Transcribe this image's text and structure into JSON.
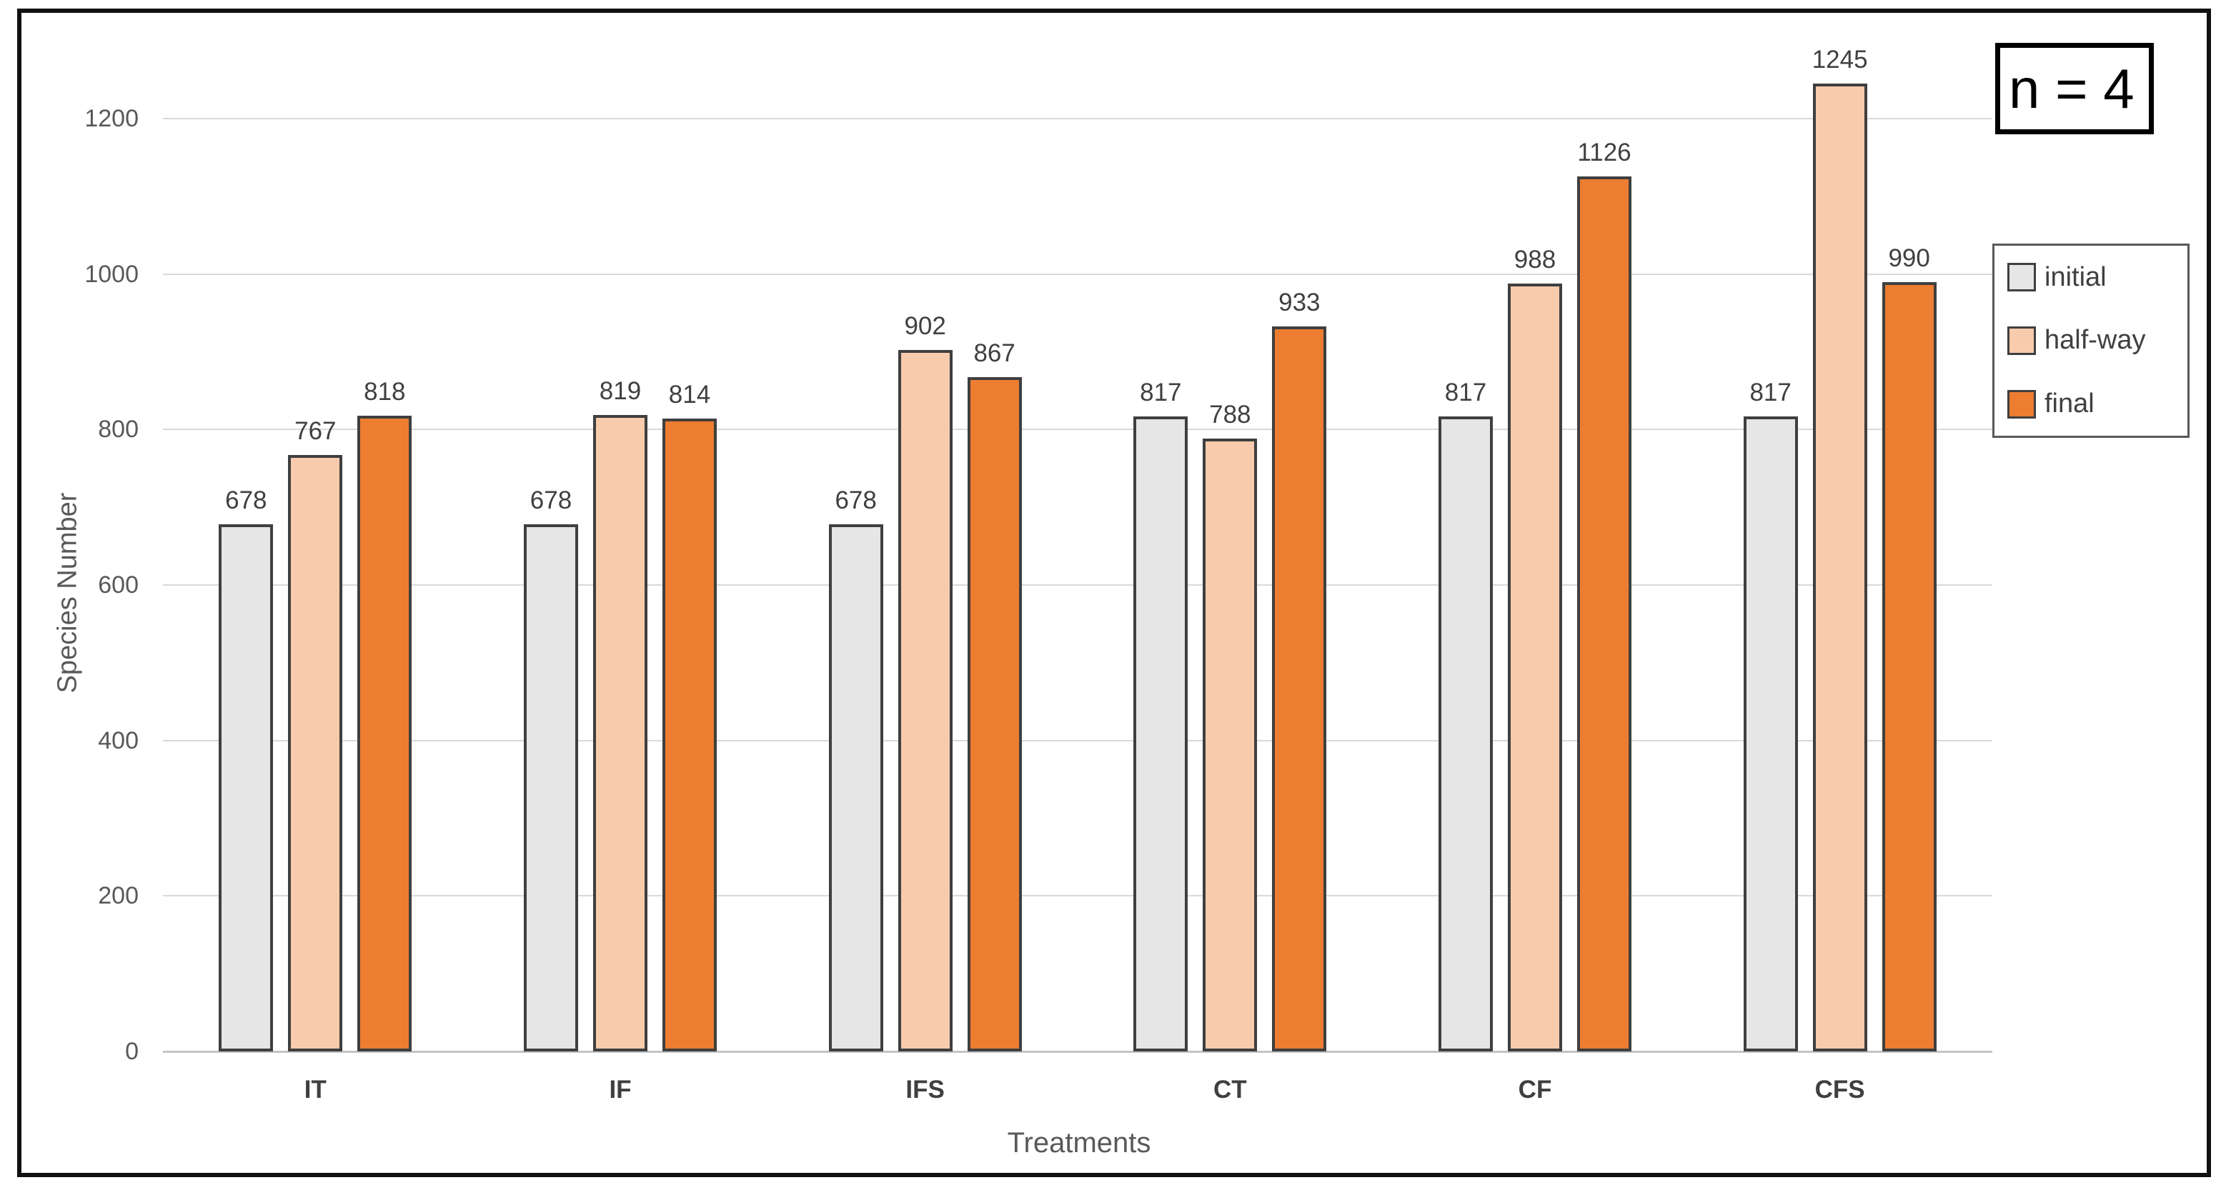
{
  "chart_data": {
    "type": "bar",
    "title": "",
    "xlabel": "Treatments",
    "ylabel": "Species Number",
    "annotation": "n = 4",
    "categories": [
      "IT",
      "IF",
      "IFS",
      "CT",
      "CF",
      "CFS"
    ],
    "series": [
      {
        "name": "initial",
        "values": [
          678,
          678,
          678,
          817,
          817,
          817
        ],
        "fill": "#e7e6e6",
        "border": "#3f3f3f"
      },
      {
        "name": "half-way",
        "values": [
          767,
          819,
          902,
          788,
          988,
          1245
        ],
        "fill": "#f8cbad",
        "border": "#3f3f3f"
      },
      {
        "name": "final",
        "values": [
          818,
          814,
          867,
          933,
          1126,
          990
        ],
        "fill": "#ed7d31",
        "border": "#3f3f3f"
      }
    ],
    "ylim": [
      0,
      1200
    ],
    "yticks": [
      0,
      200,
      400,
      600,
      800,
      1000,
      1200
    ],
    "grid": true,
    "data_labels": true,
    "legend_position": "right"
  },
  "colors": {
    "gridline": "#d9d9d9",
    "axis_line": "#c4c4c4",
    "label_text": "#404040",
    "tick_text": "#595959",
    "frame": "#111111"
  }
}
